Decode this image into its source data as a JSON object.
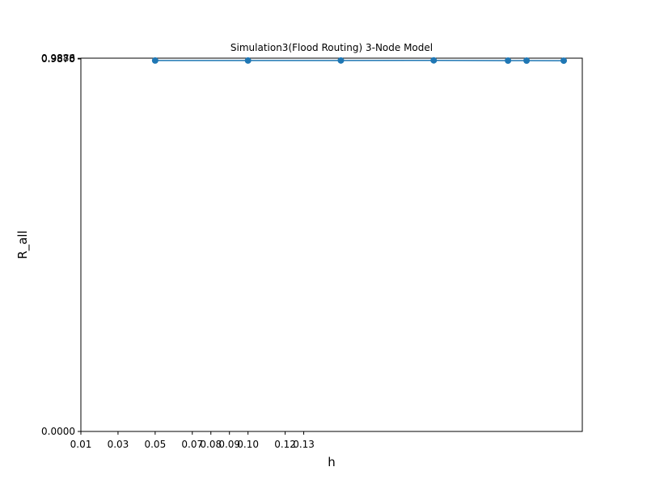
{
  "chart_data": {
    "type": "line",
    "title": "Simulation3(Flood Routing) 3-Node Model",
    "x_label": "h",
    "y_label": "R_all",
    "series": [
      {
        "color": "#1f77b4",
        "x": [
          0.05,
          0.1,
          0.15,
          0.2,
          0.24,
          0.25,
          0.27
        ],
        "values": [
          0.9828,
          0.9828,
          0.9829,
          0.9832,
          0.9826,
          0.9826,
          0.9824
        ]
      }
    ],
    "xlim": [
      0.01,
      0.28
    ],
    "xticks": [
      0.01,
      0.03,
      0.05,
      0.07,
      0.08,
      0.09,
      {
        "value": 0.1,
        "label": "0.10"
      },
      0.12,
      0.13
    ],
    "ylim": [
      0,
      0.989
    ],
    "yticks": [
      {
        "value": 0,
        "label": "0.0000"
      },
      {
        "value": 0.987,
        "label": "0.9870"
      },
      0.9875,
      0.9878,
      0.9886
    ]
  }
}
